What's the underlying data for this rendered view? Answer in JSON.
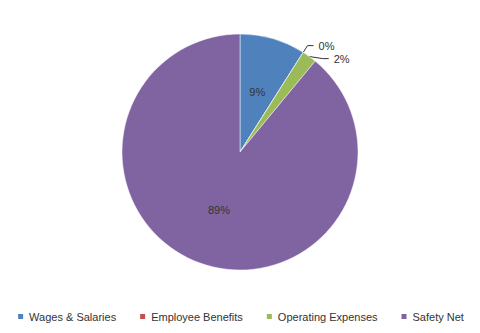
{
  "chart_data": {
    "type": "pie",
    "categories": [
      "Wages & Salaries",
      "Employee Benefits",
      "Operating Expenses",
      "Safety Net"
    ],
    "values": [
      9,
      0,
      2,
      89
    ],
    "value_labels": [
      "9%",
      "0%",
      "2%",
      "89%"
    ],
    "colors": [
      "#4f81bd",
      "#c0504d",
      "#9bbb59",
      "#8064a2"
    ],
    "legend": "bottom",
    "data_labels": true
  }
}
